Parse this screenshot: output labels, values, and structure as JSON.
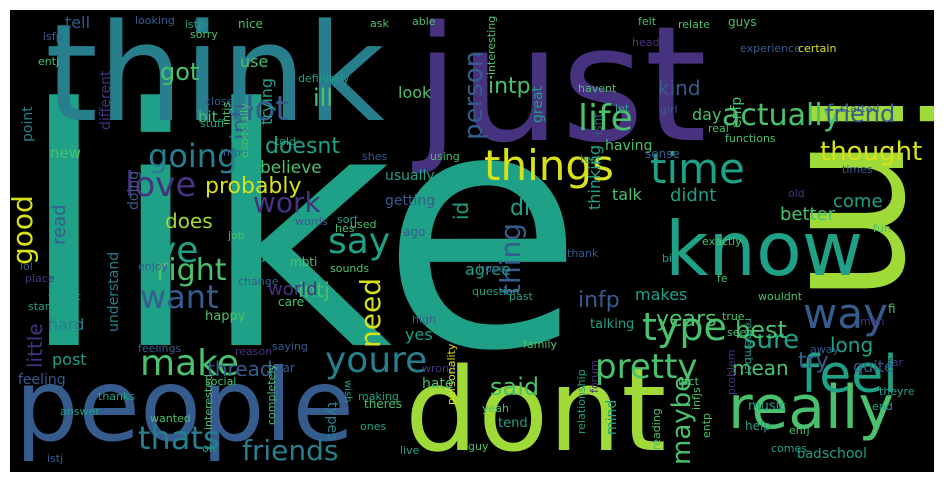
{
  "palette": {
    "yellow": "#d8e219",
    "lime": "#a0da39",
    "green": "#4ac16d",
    "teal": "#1fa187",
    "cyan": "#277f8e",
    "blue": "#365c8d",
    "indigo": "#46327e",
    "purple": "#440154"
  },
  "words": [
    {
      "text": "like",
      "weight": 1.0,
      "color": "teal"
    },
    {
      "text": "im",
      "weight": 0.86,
      "color": "lime"
    },
    {
      "text": "just",
      "weight": 0.72,
      "color": "indigo"
    },
    {
      "text": "think",
      "weight": 0.63,
      "color": "cyan"
    },
    {
      "text": "dont",
      "weight": 0.62,
      "color": "lime"
    },
    {
      "text": "people",
      "weight": 0.6,
      "color": "blue"
    },
    {
      "text": "know",
      "weight": 0.46,
      "color": "teal"
    },
    {
      "text": "really",
      "weight": 0.42,
      "color": "green"
    },
    {
      "text": "things",
      "weight": 0.33,
      "color": "yellow"
    },
    {
      "text": "time",
      "weight": 0.33,
      "color": "teal"
    },
    {
      "text": "feel",
      "weight": 0.3,
      "color": "teal"
    },
    {
      "text": "youre",
      "weight": 0.28,
      "color": "cyan"
    },
    {
      "text": "lot",
      "weight": 0.27,
      "color": "blue"
    },
    {
      "text": "life",
      "weight": 0.26,
      "color": "green"
    },
    {
      "text": "way",
      "weight": 0.26,
      "color": "blue"
    },
    {
      "text": "type",
      "weight": 0.25,
      "color": "green"
    },
    {
      "text": "make",
      "weight": 0.24,
      "color": "green"
    },
    {
      "text": "want",
      "weight": 0.24,
      "color": "blue"
    },
    {
      "text": "love",
      "weight": 0.23,
      "color": "indigo"
    },
    {
      "text": "pretty",
      "weight": 0.23,
      "color": "green"
    },
    {
      "text": "thats",
      "weight": 0.23,
      "color": "cyan"
    },
    {
      "text": "say",
      "weight": 0.22,
      "color": "teal"
    },
    {
      "text": "going",
      "weight": 0.22,
      "color": "cyan"
    },
    {
      "text": "good",
      "weight": 0.22,
      "color": "yellow"
    },
    {
      "text": "actually",
      "weight": 0.21,
      "color": "green"
    },
    {
      "text": "person",
      "weight": 0.21,
      "color": "blue"
    },
    {
      "text": "friends",
      "weight": 0.21,
      "color": "cyan"
    },
    {
      "text": "ive",
      "weight": 0.21,
      "color": "teal"
    },
    {
      "text": "right",
      "weight": 0.2,
      "color": "green"
    },
    {
      "text": "thing",
      "weight": 0.2,
      "color": "blue"
    },
    {
      "text": "sure",
      "weight": 0.2,
      "color": "teal"
    },
    {
      "text": "thought",
      "weight": 0.19,
      "color": "yellow"
    },
    {
      "text": "work",
      "weight": 0.18,
      "color": "indigo"
    },
    {
      "text": "friend",
      "weight": 0.18,
      "color": "blue"
    },
    {
      "text": "got",
      "weight": 0.18,
      "color": "green"
    },
    {
      "text": "need",
      "weight": 0.18,
      "color": "yellow"
    },
    {
      "text": "maybe",
      "weight": 0.17,
      "color": "green"
    },
    {
      "text": "probably",
      "weight": 0.17,
      "color": "yellow"
    },
    {
      "text": "said",
      "weight": 0.17,
      "color": "green"
    },
    {
      "text": "kind",
      "weight": 0.16,
      "color": "blue"
    },
    {
      "text": "infp",
      "weight": 0.16,
      "color": "blue"
    },
    {
      "text": "doesnt",
      "weight": 0.16,
      "color": "teal"
    },
    {
      "text": "intp",
      "weight": 0.16,
      "color": "green"
    },
    {
      "text": "did",
      "weight": 0.16,
      "color": "teal"
    },
    {
      "text": "best",
      "weight": 0.16,
      "color": "green"
    },
    {
      "text": "years",
      "weight": 0.16,
      "color": "green"
    },
    {
      "text": "ill",
      "weight": 0.16,
      "color": "green"
    },
    {
      "text": "little",
      "weight": 0.15,
      "color": "indigo"
    },
    {
      "text": "thread",
      "weight": 0.15,
      "color": "blue"
    },
    {
      "text": "mean",
      "weight": 0.15,
      "color": "green"
    },
    {
      "text": "intj",
      "weight": 0.15,
      "color": "green"
    },
    {
      "text": "does",
      "weight": 0.15,
      "color": "lime"
    },
    {
      "text": "try",
      "weight": 0.15,
      "color": "blue"
    },
    {
      "text": "read",
      "weight": 0.14,
      "color": "blue"
    },
    {
      "text": "world",
      "weight": 0.14,
      "color": "indigo"
    },
    {
      "text": "infj",
      "weight": 0.14,
      "color": "blue"
    },
    {
      "text": "long",
      "weight": 0.14,
      "color": "teal"
    },
    {
      "text": "thinking",
      "weight": 0.14,
      "color": "teal"
    },
    {
      "text": "didnt",
      "weight": 0.14,
      "color": "teal"
    },
    {
      "text": "id",
      "weight": 0.14,
      "color": "teal"
    },
    {
      "text": "makes",
      "weight": 0.13,
      "color": "teal"
    },
    {
      "text": "better",
      "weight": 0.13,
      "color": "green"
    },
    {
      "text": "come",
      "weight": 0.13,
      "color": "teal"
    },
    {
      "text": "believe",
      "weight": 0.13,
      "color": "green"
    },
    {
      "text": "tell",
      "weight": 0.12,
      "color": "blue"
    },
    {
      "text": "trying",
      "weight": 0.12,
      "color": "teal"
    },
    {
      "text": "quite",
      "weight": 0.12,
      "color": "blue"
    },
    {
      "text": "yes",
      "weight": 0.12,
      "color": "teal"
    },
    {
      "text": "post",
      "weight": 0.12,
      "color": "teal"
    },
    {
      "text": "hard",
      "weight": 0.12,
      "color": "cyan"
    },
    {
      "text": "talk",
      "weight": 0.12,
      "color": "green"
    },
    {
      "text": "look",
      "weight": 0.12,
      "color": "green"
    },
    {
      "text": "agree",
      "weight": 0.12,
      "color": "teal"
    },
    {
      "text": "feeling",
      "weight": 0.11,
      "color": "blue"
    },
    {
      "text": "new",
      "weight": 0.11,
      "color": "green"
    },
    {
      "text": "bit",
      "weight": 0.11,
      "color": "green"
    },
    {
      "text": "usually",
      "weight": 0.11,
      "color": "teal"
    },
    {
      "text": "day",
      "weight": 0.11,
      "color": "green"
    },
    {
      "text": "understand",
      "weight": 0.11,
      "color": "cyan"
    },
    {
      "text": "great",
      "weight": 0.11,
      "color": "teal"
    },
    {
      "text": "use",
      "weight": 0.11,
      "color": "green"
    },
    {
      "text": "enfp",
      "weight": 0.11,
      "color": "green"
    },
    {
      "text": "school",
      "weight": 0.11,
      "color": "teal"
    },
    {
      "text": "doing",
      "weight": 0.1,
      "color": "blue"
    },
    {
      "text": "different",
      "weight": 0.1,
      "color": "indigo"
    },
    {
      "text": "point",
      "weight": 0.1,
      "color": "cyan"
    },
    {
      "text": "guess",
      "weight": 0.1,
      "color": "teal"
    },
    {
      "text": "having",
      "weight": 0.1,
      "color": "green"
    },
    {
      "text": "types",
      "weight": 0.1,
      "color": "cyan"
    },
    {
      "text": "mind",
      "weight": 0.1,
      "color": "teal"
    },
    {
      "text": "hate",
      "weight": 0.1,
      "color": "green"
    },
    {
      "text": "fi",
      "weight": 0.1,
      "color": "green"
    },
    {
      "text": "getting",
      "weight": 0.09,
      "color": "blue"
    },
    {
      "text": "talking",
      "weight": 0.09,
      "color": "teal"
    },
    {
      "text": "ago",
      "weight": 0.09,
      "color": "blue"
    },
    {
      "text": "wish",
      "weight": 0.09,
      "color": "teal"
    },
    {
      "text": "happy",
      "weight": 0.09,
      "color": "green"
    },
    {
      "text": "year",
      "weight": 0.09,
      "color": "blue"
    },
    {
      "text": "music",
      "weight": 0.09,
      "color": "teal"
    },
    {
      "text": "bad",
      "weight": 0.09,
      "color": "teal"
    },
    {
      "text": "tend",
      "weight": 0.09,
      "color": "teal"
    },
    {
      "text": "help",
      "weight": 0.09,
      "color": "teal"
    },
    {
      "text": "isnt",
      "weight": 0.09,
      "color": "blue"
    },
    {
      "text": "sense",
      "weight": 0.09,
      "color": "blue"
    },
    {
      "text": "care",
      "weight": 0.09,
      "color": "green"
    },
    {
      "text": "mbti",
      "weight": 0.09,
      "color": "green"
    },
    {
      "text": "theres",
      "weight": 0.09,
      "color": "green"
    },
    {
      "text": "looking",
      "weight": 0.08,
      "color": "blue"
    },
    {
      "text": "nice",
      "weight": 0.08,
      "color": "green"
    },
    {
      "text": "guys",
      "weight": 0.08,
      "color": "green"
    },
    {
      "text": "istp",
      "weight": 0.08,
      "color": "teal"
    },
    {
      "text": "isfp",
      "weight": 0.08,
      "color": "blue"
    },
    {
      "text": "sorry",
      "weight": 0.08,
      "color": "green"
    },
    {
      "text": "ask",
      "weight": 0.08,
      "color": "green"
    },
    {
      "text": "felt",
      "weight": 0.08,
      "color": "green"
    },
    {
      "text": "relate",
      "weight": 0.08,
      "color": "green"
    },
    {
      "text": "definitely",
      "weight": 0.08,
      "color": "teal"
    },
    {
      "text": "experience",
      "weight": 0.08,
      "color": "blue"
    },
    {
      "text": "certain",
      "weight": 0.08,
      "color": "yellow"
    },
    {
      "text": "interesting",
      "weight": 0.08,
      "color": "green"
    },
    {
      "text": "head",
      "weight": 0.08,
      "color": "indigo"
    },
    {
      "text": "entj",
      "weight": 0.08,
      "color": "green"
    },
    {
      "text": "close",
      "weight": 0.08,
      "color": "blue"
    },
    {
      "text": "stuff",
      "weight": 0.08,
      "color": "teal"
    },
    {
      "text": "intjs",
      "weight": 0.08,
      "color": "green"
    },
    {
      "text": "let",
      "weight": 0.08,
      "color": "teal"
    },
    {
      "text": "havent",
      "weight": 0.08,
      "color": "green"
    },
    {
      "text": "girl",
      "weight": 0.08,
      "color": "blue"
    },
    {
      "text": "real",
      "weight": 0.08,
      "color": "green"
    },
    {
      "text": "started",
      "weight": 0.08,
      "color": "blue"
    },
    {
      "text": "told",
      "weight": 0.08,
      "color": "teal"
    },
    {
      "text": "test",
      "weight": 0.08,
      "color": "teal"
    },
    {
      "text": "functions",
      "weight": 0.08,
      "color": "green"
    },
    {
      "text": "times",
      "weight": 0.08,
      "color": "blue"
    },
    {
      "text": "infps",
      "weight": 0.08,
      "color": "blue"
    },
    {
      "text": "especially",
      "weight": 0.08,
      "color": "green"
    },
    {
      "text": "shes",
      "weight": 0.08,
      "color": "blue"
    },
    {
      "text": "using",
      "weight": 0.08,
      "color": "green"
    },
    {
      "text": "hes",
      "weight": 0.08,
      "color": "green"
    },
    {
      "text": "used",
      "weight": 0.08,
      "color": "green"
    },
    {
      "text": "sort",
      "weight": 0.08,
      "color": "teal"
    },
    {
      "text": "words",
      "weight": 0.08,
      "color": "blue"
    },
    {
      "text": "job",
      "weight": 0.08,
      "color": "green"
    },
    {
      "text": "exactly",
      "weight": 0.08,
      "color": "green"
    },
    {
      "text": "big",
      "weight": 0.08,
      "color": "teal"
    },
    {
      "text": "sounds",
      "weight": 0.08,
      "color": "green"
    },
    {
      "text": "thank",
      "weight": 0.08,
      "color": "blue"
    },
    {
      "text": "fun",
      "weight": 0.08,
      "color": "green"
    },
    {
      "text": "fe",
      "weight": 0.08,
      "color": "green"
    },
    {
      "text": "old",
      "weight": 0.08,
      "color": "indigo"
    },
    {
      "text": "hope",
      "weight": 0.08,
      "color": "blue"
    },
    {
      "text": "question",
      "weight": 0.08,
      "color": "teal"
    },
    {
      "text": "wouldnt",
      "weight": 0.08,
      "color": "green"
    },
    {
      "text": "remember",
      "weight": 0.08,
      "color": "teal"
    },
    {
      "text": "high",
      "weight": 0.08,
      "color": "blue"
    },
    {
      "text": "seen",
      "weight": 0.08,
      "color": "green"
    },
    {
      "text": "past",
      "weight": 0.08,
      "color": "teal"
    },
    {
      "text": "idea",
      "weight": 0.08,
      "color": "teal"
    },
    {
      "text": "family",
      "weight": 0.08,
      "color": "green"
    },
    {
      "text": "true",
      "weight": 0.08,
      "color": "green"
    },
    {
      "text": "problem",
      "weight": 0.08,
      "color": "indigo"
    },
    {
      "text": "man",
      "weight": 0.08,
      "color": "indigo"
    },
    {
      "text": "away",
      "weight": 0.08,
      "color": "blue"
    },
    {
      "text": "far",
      "weight": 0.08,
      "color": "indigo"
    },
    {
      "text": "lol",
      "weight": 0.07,
      "color": "blue"
    },
    {
      "text": "enjoy",
      "weight": 0.07,
      "color": "blue"
    },
    {
      "text": "place",
      "weight": 0.07,
      "color": "indigo"
    },
    {
      "text": "start",
      "weight": 0.07,
      "color": "teal"
    },
    {
      "text": "wasnt",
      "weight": 0.07,
      "color": "teal"
    },
    {
      "text": "feelings",
      "weight": 0.07,
      "color": "blue"
    },
    {
      "text": "reason",
      "weight": 0.07,
      "color": "indigo"
    },
    {
      "text": "saying",
      "weight": 0.07,
      "color": "blue"
    },
    {
      "text": "change",
      "weight": 0.07,
      "color": "blue"
    },
    {
      "text": "social",
      "weight": 0.07,
      "color": "green"
    },
    {
      "text": "thanks",
      "weight": 0.07,
      "color": "teal"
    },
    {
      "text": "answer",
      "weight": 0.07,
      "color": "teal"
    },
    {
      "text": "wanted",
      "weight": 0.07,
      "color": "green"
    },
    {
      "text": "interested",
      "weight": 0.07,
      "color": "green"
    },
    {
      "text": "completely",
      "weight": 0.07,
      "color": "green"
    },
    {
      "text": "oh",
      "weight": 0.07,
      "color": "teal"
    },
    {
      "text": "making",
      "weight": 0.07,
      "color": "teal"
    },
    {
      "text": "ones",
      "weight": 0.07,
      "color": "teal"
    },
    {
      "text": "live",
      "weight": 0.07,
      "color": "teal"
    },
    {
      "text": "wrong",
      "weight": 0.07,
      "color": "indigo"
    },
    {
      "text": "personality",
      "weight": 0.07,
      "color": "yellow"
    },
    {
      "text": "relationship",
      "weight": 0.07,
      "color": "teal"
    },
    {
      "text": "guy",
      "weight": 0.07,
      "color": "green"
    },
    {
      "text": "forum",
      "weight": 0.07,
      "color": "indigo"
    },
    {
      "text": "yeah",
      "weight": 0.07,
      "color": "green"
    },
    {
      "text": "reading",
      "weight": 0.07,
      "color": "green"
    },
    {
      "text": "infjs",
      "weight": 0.07,
      "color": "green"
    },
    {
      "text": "fact",
      "weight": 0.07,
      "color": "green"
    },
    {
      "text": "entp",
      "weight": 0.07,
      "color": "green"
    },
    {
      "text": "comes",
      "weight": 0.07,
      "color": "teal"
    },
    {
      "text": "enfj",
      "weight": 0.07,
      "color": "green"
    },
    {
      "text": "end",
      "weight": 0.07,
      "color": "teal"
    },
    {
      "text": "theyre",
      "weight": 0.07,
      "color": "teal"
    },
    {
      "text": "istj",
      "weight": 0.07,
      "color": "blue"
    },
    {
      "text": "able",
      "weight": 0.07,
      "color": "green"
    }
  ]
}
